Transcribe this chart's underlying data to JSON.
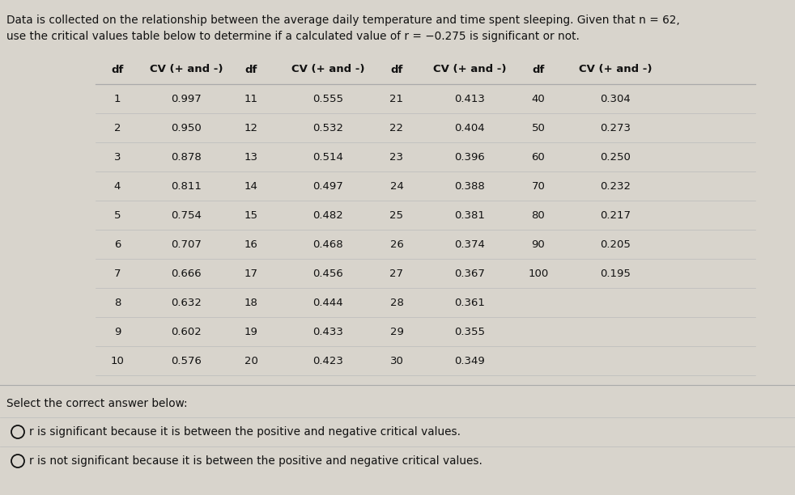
{
  "title_line1": "Data is collected on the relationship between the average daily temperature and time spent sleeping. Given that n = 62,",
  "title_line2": "use the critical values table below to determine if a calculated value of r = −0.275 is significant or not.",
  "col1_df": [
    1,
    2,
    3,
    4,
    5,
    6,
    7,
    8,
    9,
    10
  ],
  "col1_cv": [
    "0.997",
    "0.950",
    "0.878",
    "0.811",
    "0.754",
    "0.707",
    "0.666",
    "0.632",
    "0.602",
    "0.576"
  ],
  "col2_df": [
    11,
    12,
    13,
    14,
    15,
    16,
    17,
    18,
    19,
    20
  ],
  "col2_cv": [
    "0.555",
    "0.532",
    "0.514",
    "0.497",
    "0.482",
    "0.468",
    "0.456",
    "0.444",
    "0.433",
    "0.423"
  ],
  "col3_df": [
    21,
    22,
    23,
    24,
    25,
    26,
    27,
    28,
    29,
    30
  ],
  "col3_cv": [
    "0.413",
    "0.404",
    "0.396",
    "0.388",
    "0.381",
    "0.374",
    "0.367",
    "0.361",
    "0.355",
    "0.349"
  ],
  "col4_df": [
    40,
    50,
    60,
    70,
    80,
    90,
    100
  ],
  "col4_cv": [
    "0.304",
    "0.273",
    "0.250",
    "0.232",
    "0.217",
    "0.205",
    "0.195"
  ],
  "answer1": "r is significant because it is between the positive and negative critical values.",
  "answer2": "r is not significant because it is between the positive and negative critical values.",
  "select_label": "Select the correct answer below:",
  "bg_color": "#d8d4cc",
  "content_bg": "#e8e4dc",
  "text_color": "#111111",
  "line_color": "#aaaaaa",
  "thin_line_color": "#bbbbbb"
}
